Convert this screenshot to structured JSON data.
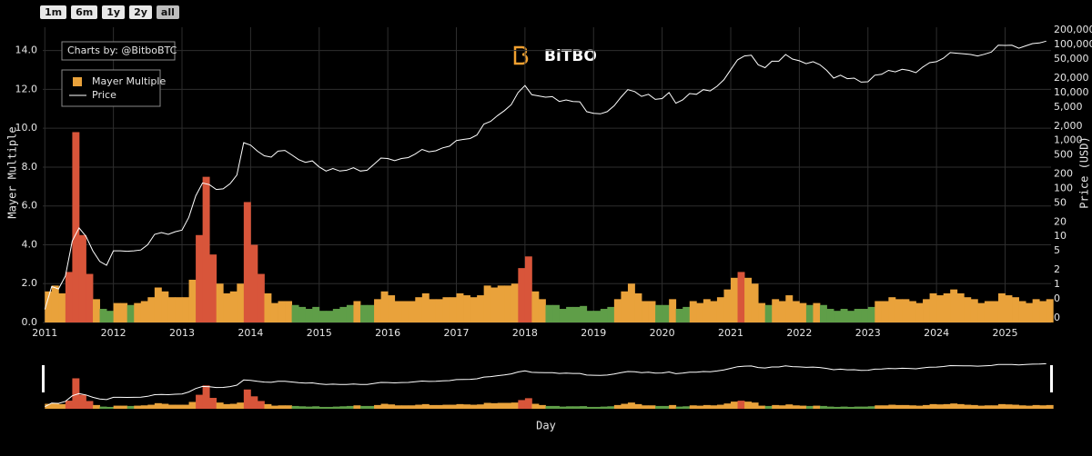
{
  "buttons": [
    "1m",
    "6m",
    "1y",
    "2y",
    "all"
  ],
  "watermark": "BiTBO",
  "chart_data": {
    "type": "bar",
    "annotation": "Charts by: @BitboBTC",
    "xlabel": "Day",
    "ylabel": "Mayer Multiple",
    "y2label": "Price (USD)",
    "grid": true,
    "legend": "top-left",
    "xlim": [
      2010.97,
      2025.67
    ],
    "xticks": [
      2011,
      2012,
      2013,
      2014,
      2015,
      2016,
      2017,
      2018,
      2019,
      2020,
      2021,
      2022,
      2023,
      2024,
      2025
    ],
    "ylim": [
      0,
      15.2
    ],
    "yticks": [
      {
        "value": 0,
        "label": "0.0"
      },
      {
        "value": 2,
        "label": "2.0"
      },
      {
        "value": 4,
        "label": "4.0"
      },
      {
        "value": 6,
        "label": "6.0"
      },
      {
        "value": 8,
        "label": "8.0"
      },
      {
        "value": 10,
        "label": "10.0"
      },
      {
        "value": 12,
        "label": "12.0"
      },
      {
        "value": 14,
        "label": "14.0"
      }
    ],
    "y2log": true,
    "y2lim": [
      0.16,
      230000
    ],
    "y2ticks": [
      {
        "value": 0.2,
        "label": "0"
      },
      {
        "value": 0.5,
        "label": "0"
      },
      1,
      2,
      5,
      10,
      20,
      50,
      100,
      200,
      500,
      {
        "value": 1000,
        "label": "1,000"
      },
      {
        "value": 2000,
        "label": "2,000"
      },
      {
        "value": 5000,
        "label": "5,000"
      },
      {
        "value": 10000,
        "label": "10,000"
      },
      {
        "value": 20000,
        "label": "20,000"
      },
      {
        "value": 50000,
        "label": "50,000"
      },
      {
        "value": 100000,
        "label": "100,000"
      },
      {
        "value": 200000,
        "label": "200,000"
      }
    ],
    "x": [
      2011,
      2011.1,
      2011.2,
      2011.3,
      2011.4,
      2011.5,
      2011.6,
      2011.7,
      2011.8,
      2011.9,
      2012,
      2012.1,
      2012.2,
      2012.3,
      2012.4,
      2012.5,
      2012.6,
      2012.7,
      2012.8,
      2012.9,
      2013,
      2013.1,
      2013.2,
      2013.3,
      2013.4,
      2013.5,
      2013.6,
      2013.7,
      2013.8,
      2013.9,
      2014,
      2014.1,
      2014.2,
      2014.3,
      2014.4,
      2014.5,
      2014.6,
      2014.7,
      2014.8,
      2014.9,
      2015,
      2015.1,
      2015.2,
      2015.3,
      2015.4,
      2015.5,
      2015.6,
      2015.7,
      2015.8,
      2015.9,
      2016,
      2016.1,
      2016.2,
      2016.3,
      2016.4,
      2016.5,
      2016.6,
      2016.7,
      2016.8,
      2016.9,
      2017,
      2017.1,
      2017.2,
      2017.3,
      2017.4,
      2017.5,
      2017.6,
      2017.7,
      2017.8,
      2017.9,
      2018,
      2018.1,
      2018.2,
      2018.3,
      2018.4,
      2018.5,
      2018.6,
      2018.7,
      2018.8,
      2018.9,
      2019,
      2019.1,
      2019.2,
      2019.3,
      2019.4,
      2019.5,
      2019.6,
      2019.7,
      2019.8,
      2019.9,
      2020,
      2020.1,
      2020.2,
      2020.3,
      2020.4,
      2020.5,
      2020.6,
      2020.7,
      2020.8,
      2020.9,
      2021,
      2021.1,
      2021.2,
      2021.3,
      2021.4,
      2021.5,
      2021.6,
      2021.7,
      2021.8,
      2021.9,
      2022,
      2022.1,
      2022.2,
      2022.3,
      2022.4,
      2022.5,
      2022.6,
      2022.7,
      2022.8,
      2022.9,
      2023,
      2023.1,
      2023.2,
      2023.3,
      2023.4,
      2023.5,
      2023.6,
      2023.7,
      2023.8,
      2023.9,
      2024,
      2024.1,
      2024.2,
      2024.3,
      2024.4,
      2024.5,
      2024.6,
      2024.7,
      2024.8,
      2024.9,
      2025,
      2025.1,
      2025.2,
      2025.3,
      2025.4,
      2025.5,
      2025.6
    ],
    "series": [
      {
        "name": "Mayer Multiple",
        "type": "bar",
        "color": "#e9a23b",
        "values": [
          1.6,
          1.9,
          1.5,
          2.6,
          9.8,
          4.5,
          2.5,
          1.2,
          0.7,
          0.6,
          1.0,
          1.0,
          0.9,
          1.0,
          1.1,
          1.3,
          1.8,
          1.6,
          1.3,
          1.3,
          1.3,
          2.2,
          4.5,
          7.5,
          3.5,
          2.0,
          1.5,
          1.6,
          2.0,
          6.2,
          4.0,
          2.5,
          1.5,
          1.0,
          1.1,
          1.1,
          0.9,
          0.8,
          0.7,
          0.8,
          0.6,
          0.6,
          0.7,
          0.8,
          0.9,
          1.1,
          0.9,
          0.9,
          1.2,
          1.6,
          1.4,
          1.1,
          1.1,
          1.1,
          1.3,
          1.5,
          1.2,
          1.2,
          1.3,
          1.3,
          1.5,
          1.4,
          1.3,
          1.4,
          1.9,
          1.8,
          1.9,
          1.9,
          2.0,
          2.8,
          3.4,
          1.6,
          1.2,
          0.9,
          0.9,
          0.7,
          0.8,
          0.8,
          0.85,
          0.6,
          0.6,
          0.7,
          0.8,
          1.2,
          1.6,
          2.0,
          1.5,
          1.1,
          1.1,
          0.9,
          0.9,
          1.2,
          0.7,
          0.8,
          1.1,
          1.0,
          1.2,
          1.1,
          1.3,
          1.7,
          2.3,
          2.6,
          2.3,
          2.0,
          1.0,
          0.9,
          1.2,
          1.1,
          1.4,
          1.1,
          1.0,
          0.9,
          1.0,
          0.9,
          0.7,
          0.6,
          0.7,
          0.6,
          0.7,
          0.7,
          0.8,
          1.1,
          1.1,
          1.3,
          1.2,
          1.2,
          1.1,
          1.0,
          1.2,
          1.5,
          1.4,
          1.5,
          1.7,
          1.5,
          1.3,
          1.2,
          1.0,
          1.1,
          1.1,
          1.5,
          1.4,
          1.3,
          1.1,
          1.0,
          1.2,
          1.1,
          1.2
        ],
        "colors": [
          "#e9a23b",
          "#e9a23b",
          "#e9a23b",
          "#d8553a",
          "#d8553a",
          "#d8553a",
          "#d8553a",
          "#e9a23b",
          "#5f9e48",
          "#5f9e48",
          "#e9a23b",
          "#e9a23b",
          "#5f9e48",
          "#e9a23b",
          "#e9a23b",
          "#e9a23b",
          "#e9a23b",
          "#e9a23b",
          "#e9a23b",
          "#e9a23b",
          "#e9a23b",
          "#e9a23b",
          "#d8553a",
          "#d8553a",
          "#d8553a",
          "#e9a23b",
          "#e9a23b",
          "#e9a23b",
          "#e9a23b",
          "#d8553a",
          "#d8553a",
          "#d8553a",
          "#e9a23b",
          "#e9a23b",
          "#e9a23b",
          "#e9a23b",
          "#5f9e48",
          "#5f9e48",
          "#5f9e48",
          "#5f9e48",
          "#5f9e48",
          "#5f9e48",
          "#5f9e48",
          "#5f9e48",
          "#5f9e48",
          "#e9a23b",
          "#5f9e48",
          "#5f9e48",
          "#e9a23b",
          "#e9a23b",
          "#e9a23b",
          "#e9a23b",
          "#e9a23b",
          "#e9a23b",
          "#e9a23b",
          "#e9a23b",
          "#e9a23b",
          "#e9a23b",
          "#e9a23b",
          "#e9a23b",
          "#e9a23b",
          "#e9a23b",
          "#e9a23b",
          "#e9a23b",
          "#e9a23b",
          "#e9a23b",
          "#e9a23b",
          "#e9a23b",
          "#e9a23b",
          "#d8553a",
          "#d8553a",
          "#e9a23b",
          "#e9a23b",
          "#5f9e48",
          "#5f9e48",
          "#5f9e48",
          "#5f9e48",
          "#5f9e48",
          "#5f9e48",
          "#5f9e48",
          "#5f9e48",
          "#5f9e48",
          "#5f9e48",
          "#e9a23b",
          "#e9a23b",
          "#e9a23b",
          "#e9a23b",
          "#e9a23b",
          "#e9a23b",
          "#5f9e48",
          "#5f9e48",
          "#e9a23b",
          "#5f9e48",
          "#5f9e48",
          "#e9a23b",
          "#e9a23b",
          "#e9a23b",
          "#e9a23b",
          "#e9a23b",
          "#e9a23b",
          "#e9a23b",
          "#d8553a",
          "#e9a23b",
          "#e9a23b",
          "#e9a23b",
          "#5f9e48",
          "#e9a23b",
          "#e9a23b",
          "#e9a23b",
          "#e9a23b",
          "#e9a23b",
          "#5f9e48",
          "#e9a23b",
          "#5f9e48",
          "#5f9e48",
          "#5f9e48",
          "#5f9e48",
          "#5f9e48",
          "#5f9e48",
          "#5f9e48",
          "#5f9e48",
          "#e9a23b",
          "#e9a23b",
          "#e9a23b",
          "#e9a23b",
          "#e9a23b",
          "#e9a23b",
          "#e9a23b",
          "#e9a23b",
          "#e9a23b",
          "#e9a23b",
          "#e9a23b",
          "#e9a23b",
          "#e9a23b",
          "#e9a23b",
          "#e9a23b",
          "#e9a23b",
          "#e9a23b",
          "#e9a23b",
          "#e9a23b",
          "#e9a23b",
          "#e9a23b",
          "#e9a23b",
          "#e9a23b",
          "#e9a23b",
          "#e9a23b",
          "#e9a23b"
        ]
      },
      {
        "name": "Price",
        "type": "line",
        "color": "#ffffff",
        "axis": "y2",
        "values": [
          0.3,
          0.9,
          0.8,
          1.5,
          8,
          15,
          10,
          5,
          3,
          2.5,
          5,
          5,
          4.9,
          5,
          5.2,
          6.7,
          11,
          12,
          11,
          12.5,
          13.5,
          25,
          70,
          130,
          120,
          95,
          98,
          125,
          190,
          900,
          800,
          600,
          480,
          450,
          600,
          620,
          500,
          400,
          350,
          375,
          280,
          230,
          260,
          230,
          240,
          270,
          230,
          240,
          320,
          430,
          420,
          380,
          420,
          440,
          520,
          650,
          580,
          610,
          700,
          760,
          1000,
          1050,
          1100,
          1300,
          2200,
          2500,
          3300,
          4200,
          5600,
          10000,
          14000,
          9000,
          8500,
          8000,
          8200,
          6500,
          7000,
          6500,
          6400,
          4000,
          3700,
          3600,
          4000,
          5300,
          8000,
          11500,
          10500,
          8300,
          9200,
          7200,
          7500,
          10000,
          6000,
          7000,
          9500,
          9200,
          11500,
          10800,
          13500,
          18500,
          30000,
          48000,
          58000,
          60000,
          38000,
          33000,
          45000,
          45000,
          62000,
          50000,
          46000,
          40000,
          44000,
          38000,
          29000,
          20000,
          23000,
          19500,
          20000,
          16500,
          16800,
          23000,
          24000,
          29000,
          27000,
          30500,
          29000,
          26000,
          34000,
          42000,
          44000,
          52000,
          68000,
          66000,
          64000,
          62000,
          58000,
          63000,
          70000,
          97000,
          96000,
          97000,
          84000,
          94000,
          105000,
          108000,
          118000
        ]
      }
    ]
  }
}
